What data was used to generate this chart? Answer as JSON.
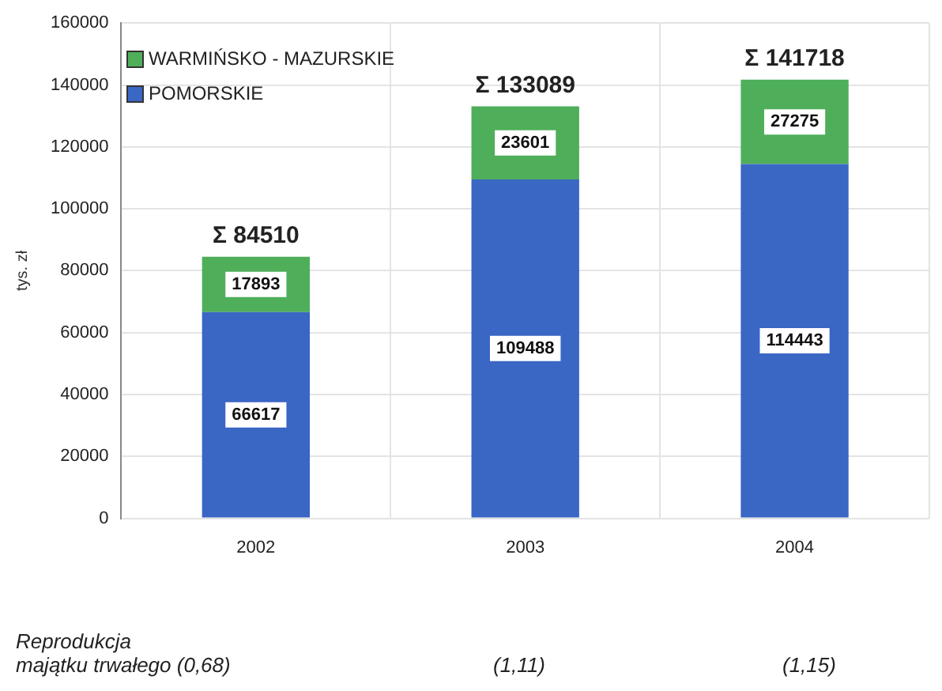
{
  "chart_data": {
    "type": "bar",
    "stacked": true,
    "ylabel": "tys. zł",
    "categories": [
      "2002",
      "2003",
      "2004"
    ],
    "series": [
      {
        "name": "POMORSKIE",
        "color": "#3a66c4",
        "values": [
          66617,
          109488,
          114443
        ]
      },
      {
        "name": "WARMIŃSKO - MAZURSKIE",
        "color": "#4fae5a",
        "values": [
          17893,
          23601,
          27275
        ]
      }
    ],
    "ylim": [
      0,
      160000
    ],
    "yticks": [
      0,
      20000,
      40000,
      60000,
      80000,
      100000,
      120000,
      140000,
      160000
    ],
    "grid": true,
    "legend": "top left",
    "data_labels": true,
    "totals": [
      "Σ 84510",
      "Σ 133089",
      "Σ 141718"
    ],
    "annotations": [
      "Reprodukcja\nmajątku trwałego (0,68)",
      "(1,11)",
      "(1,15)"
    ]
  }
}
